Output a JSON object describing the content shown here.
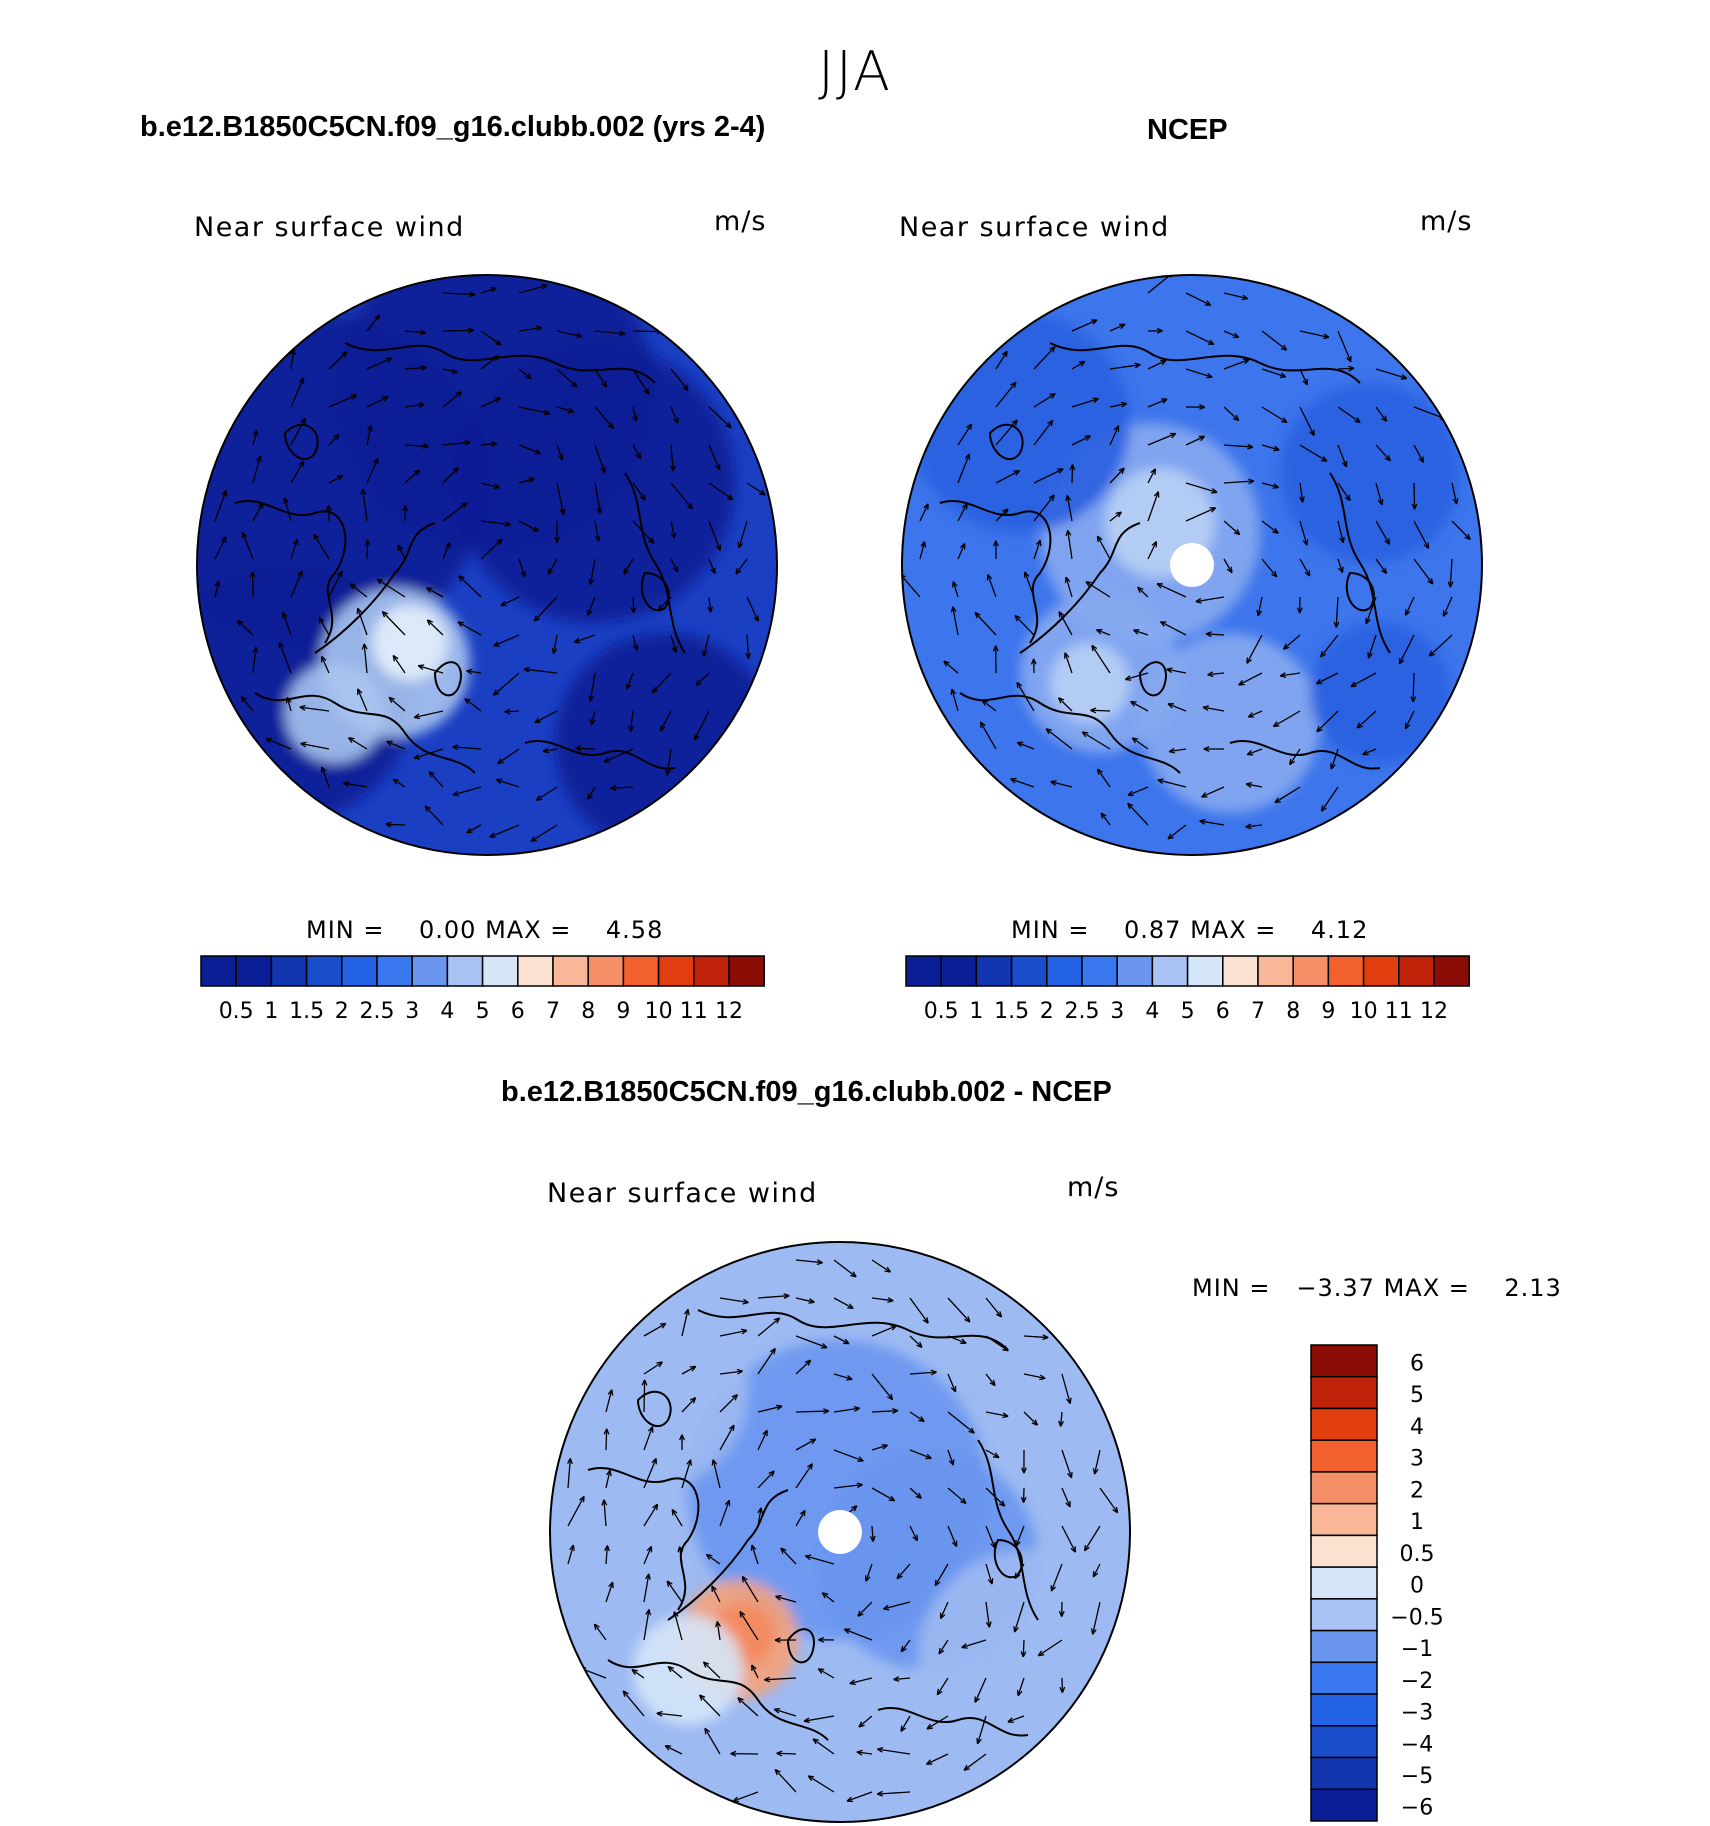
{
  "figure": {
    "season": "JJA"
  },
  "chart_data": [
    {
      "type": "heatmap",
      "panel": "model",
      "title": "b.e12.B1850C5CN.f09_g16.clubb.002 (yrs 2-4)",
      "variable": "Near surface wind",
      "units": "m/s",
      "projection": "north polar stereographic",
      "min_label": "MIN =",
      "min_value": "0.00",
      "max_label": "MAX =",
      "max_value": "4.58",
      "colorbar": {
        "orientation": "horizontal",
        "levels": [
          "0.5",
          "1",
          "1.5",
          "2",
          "2.5",
          "3",
          "4",
          "5",
          "6",
          "7",
          "8",
          "9",
          "10",
          "11",
          "12"
        ],
        "colors": [
          "#0a1f96",
          "#1235b0",
          "#1a4dcc",
          "#2462e6",
          "#3a78ef",
          "#6a96f0",
          "#a7c2f3",
          "#d5e6f8",
          "#fbe1cf",
          "#f8b898",
          "#f58f68",
          "#f2602e",
          "#e23d0f",
          "#bf230a",
          "#8c0c06"
        ]
      },
      "field_colors": {
        "low": "#0a1f96",
        "mid": "#1a3fc2",
        "high": "#a8c4f0",
        "max": "#e3eefb"
      }
    },
    {
      "type": "heatmap",
      "panel": "observation",
      "title": "NCEP",
      "variable": "Near surface wind",
      "units": "m/s",
      "projection": "north polar stereographic",
      "min_label": "MIN =",
      "min_value": "0.87",
      "max_label": "MAX =",
      "max_value": "4.12",
      "colorbar": {
        "orientation": "horizontal",
        "levels": [
          "0.5",
          "1",
          "1.5",
          "2",
          "2.5",
          "3",
          "4",
          "5",
          "6",
          "7",
          "8",
          "9",
          "10",
          "11",
          "12"
        ],
        "colors": [
          "#0a1f96",
          "#1235b0",
          "#1a4dcc",
          "#2462e6",
          "#3a78ef",
          "#6a96f0",
          "#a7c2f3",
          "#d5e6f8",
          "#fbe1cf",
          "#f8b898",
          "#f58f68",
          "#f2602e",
          "#e23d0f",
          "#bf230a",
          "#8c0c06"
        ]
      },
      "field_colors": {
        "low": "#2a5fe0",
        "mid": "#3d75ec",
        "high": "#87aaf0",
        "max": "#b9d0f5"
      }
    },
    {
      "type": "heatmap",
      "panel": "difference",
      "title": "b.e12.B1850C5CN.f09_g16.clubb.002 - NCEP",
      "variable": "Near surface wind",
      "units": "m/s",
      "projection": "north polar stereographic",
      "min_label": "MIN =",
      "min_value": "−3.37",
      "max_label": "MAX =",
      "max_value": "2.13",
      "colorbar": {
        "orientation": "vertical",
        "levels": [
          "6",
          "5",
          "4",
          "3",
          "2",
          "1",
          "0.5",
          "0",
          "−0.5",
          "−1",
          "−2",
          "−3",
          "−4",
          "−5",
          "−6"
        ],
        "colors": [
          "#8c0c06",
          "#bf230a",
          "#e23d0f",
          "#f2602e",
          "#f58f68",
          "#f8b898",
          "#fbe1cf",
          "#d5e6f8",
          "#a7c2f3",
          "#6a96f0",
          "#3a78ef",
          "#2462e6",
          "#1a4dcc",
          "#1235b0",
          "#0a1f96"
        ]
      },
      "field_colors": {
        "low": "#6a96f0",
        "mid": "#9dbaf2",
        "high": "#f5a27a",
        "max": "#f48a5c"
      }
    }
  ]
}
